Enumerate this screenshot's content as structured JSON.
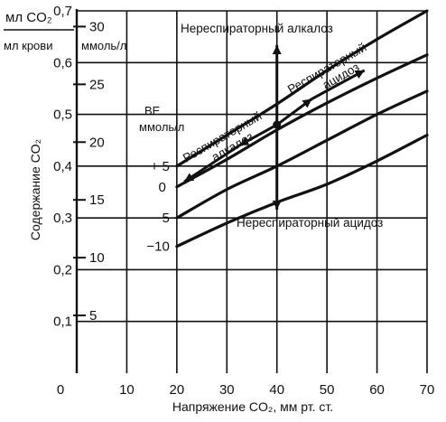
{
  "chart_data": {
    "type": "line",
    "xlabel": "Напряжение CO₂, мм рт. ст.",
    "ylabel": "Содержание CO₂",
    "ylabel_left_units": {
      "numerator": "мл CO₂",
      "denominator": "мл крови"
    },
    "secondary_y_units": "ммоль/л",
    "xlim": [
      0,
      70
    ],
    "ylim": [
      0,
      0.7
    ],
    "grid": true,
    "x_ticks": [
      "0",
      "10",
      "20",
      "30",
      "40",
      "50",
      "60",
      "70"
    ],
    "y_ticks": [
      "0,1",
      "0,2",
      "0,3",
      "0,4",
      "0,5",
      "0,6",
      "0,7"
    ],
    "secondary_y_ticks": [
      "5",
      "10",
      "15",
      "20",
      "25",
      "30"
    ],
    "be_label": {
      "title": "BE",
      "units": "ммоль/л"
    },
    "series": [
      {
        "name": "+5",
        "x": [
          20,
          30,
          40,
          50,
          60,
          70
        ],
        "y": [
          0.4,
          0.46,
          0.52,
          0.585,
          0.645,
          0.7
        ]
      },
      {
        "name": "0",
        "x": [
          20,
          30,
          40,
          50,
          60,
          70
        ],
        "y": [
          0.36,
          0.413,
          0.47,
          0.522,
          0.57,
          0.615
        ]
      },
      {
        "name": "-5",
        "x": [
          20,
          30,
          40,
          50,
          60,
          70
        ],
        "y": [
          0.3,
          0.355,
          0.4,
          0.45,
          0.5,
          0.545
        ]
      },
      {
        "name": "-10",
        "x": [
          20,
          30,
          40,
          50,
          60,
          70
        ],
        "y": [
          0.245,
          0.29,
          0.33,
          0.365,
          0.41,
          0.46
        ]
      }
    ],
    "annotations": {
      "non_resp_alkalosis": "Нереспираторный алкалоз",
      "non_resp_acidosis": "Нереспираторный ацидоз",
      "resp_alkalosis_line1": "Респираторный",
      "resp_alkalosis_line2": "алкалоз",
      "resp_acidosis_line1": "Респираторный",
      "resp_acidosis_line2": "ацидоз"
    },
    "normal_point": {
      "x": 40,
      "y": 0.48
    }
  }
}
